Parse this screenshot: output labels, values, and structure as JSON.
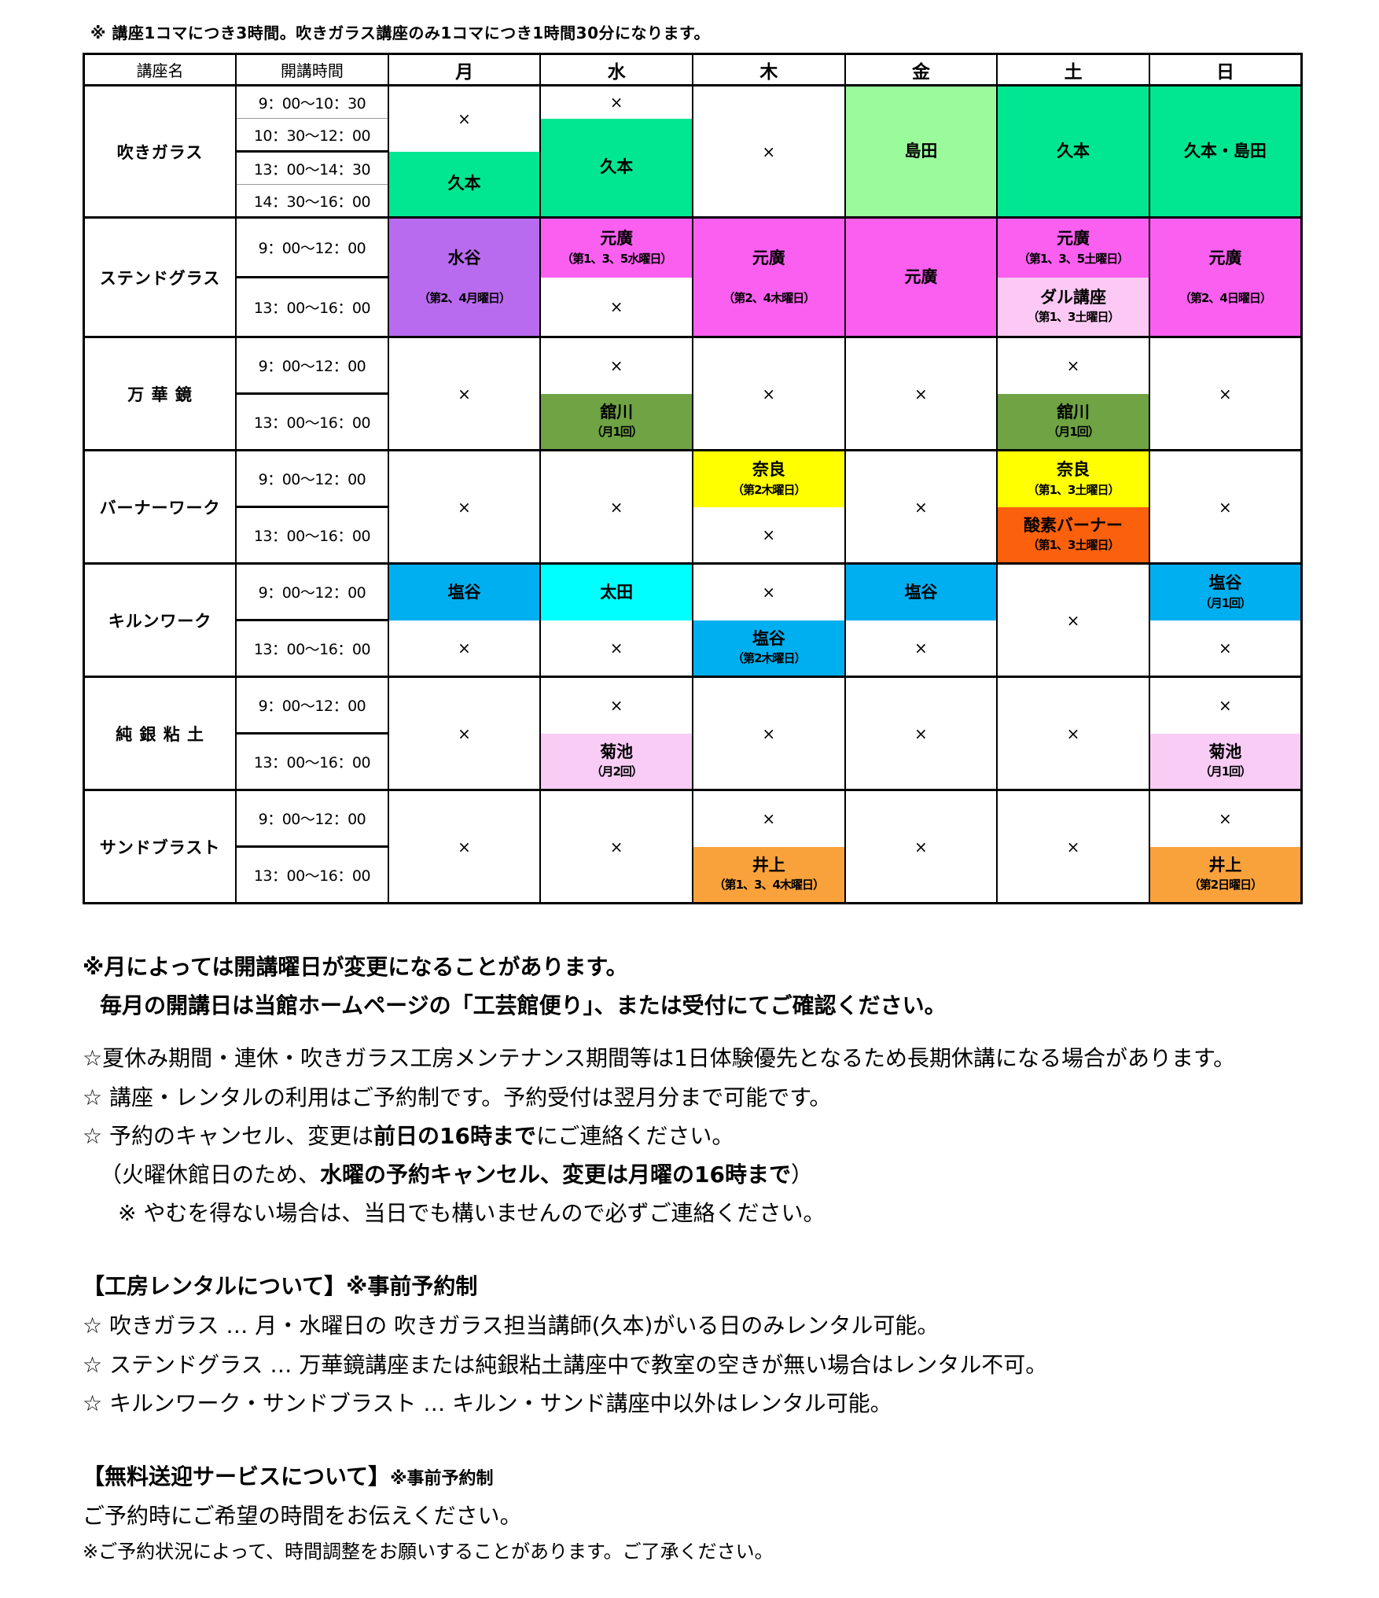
{
  "top_note": "※ 講座1コマにつき3時間。吹きガラス講座のみ1コマにつき1時間30分になります。",
  "table": {
    "headers": {
      "course": "講座名",
      "time": "開講時間",
      "days": [
        "月",
        "水",
        "木",
        "金",
        "土",
        "日"
      ]
    },
    "colors": {
      "white": "#FFFFFF",
      "green": "#00E691",
      "lightgreen": "#9AFB9A",
      "purple": "#B96BF0",
      "magenta": "#FA5FF0",
      "lightpink": "#FBC9F3",
      "pink": "#F8CCF5",
      "olive": "#6FA344",
      "yellow": "#FFFF00",
      "orangered": "#FB600C",
      "orange": "#F9A23C",
      "blue": "#00AFEF",
      "cyan": "#00FFFF"
    },
    "courses": [
      {
        "name": "吹きガラス",
        "times": [
          "9：00～10：30",
          "10：30～12：00",
          "13：00～14：30",
          "14：30～16：00"
        ],
        "time_dividers": [
          "thin",
          "thick",
          "thin"
        ],
        "days": [
          [
            {
              "text": "×",
              "rows": 2,
              "bg": "white"
            },
            {
              "text": "久本",
              "rows": 2,
              "bg": "green"
            }
          ],
          [
            {
              "text": "×",
              "rows": 1,
              "bg": "white"
            },
            {
              "text": "久本",
              "rows": 3,
              "bg": "green"
            }
          ],
          [
            {
              "text": "×",
              "rows": 4,
              "bg": "white"
            }
          ],
          [
            {
              "text": "島田",
              "rows": 4,
              "bg": "lightgreen"
            }
          ],
          [
            {
              "text": "久本",
              "rows": 4,
              "bg": "green"
            }
          ],
          [
            {
              "text": "久本・島田",
              "rows": 4,
              "bg": "green"
            }
          ]
        ]
      },
      {
        "name": "ステンドグラス",
        "times": [
          "9：00～12：00",
          "13：00～16：00"
        ],
        "time_dividers": [
          "thick"
        ],
        "days": [
          [
            {
              "text": "水谷\n（第2、4月曜日）",
              "rows": 2,
              "bg": "purple"
            }
          ],
          [
            {
              "text": "元廣\n（第1、3、5水曜日）",
              "rows": 1,
              "bg": "magenta"
            },
            {
              "text": "×",
              "rows": 1,
              "bg": "white"
            }
          ],
          [
            {
              "text": "元廣\n（第2、4木曜日）",
              "rows": 2,
              "bg": "magenta"
            }
          ],
          [
            {
              "text": "元廣",
              "rows": 2,
              "bg": "magenta"
            }
          ],
          [
            {
              "text": "元廣\n（第1、3、5土曜日）",
              "rows": 1,
              "bg": "magenta"
            },
            {
              "text": "ダル講座\n（第1、3土曜日）",
              "rows": 1,
              "bg": "lightpink"
            }
          ],
          [
            {
              "text": "元廣\n（第2、4日曜日）",
              "rows": 2,
              "bg": "magenta"
            }
          ]
        ]
      },
      {
        "name": "万 華 鏡",
        "times": [
          "9：00～12：00",
          "13：00～16：00"
        ],
        "time_dividers": [
          "thick"
        ],
        "days": [
          [
            {
              "text": "×",
              "rows": 2,
              "bg": "white"
            }
          ],
          [
            {
              "text": "×",
              "rows": 1,
              "bg": "white"
            },
            {
              "text": "舘川\n（月1回）",
              "rows": 1,
              "bg": "olive"
            }
          ],
          [
            {
              "text": "×",
              "rows": 2,
              "bg": "white"
            }
          ],
          [
            {
              "text": "×",
              "rows": 2,
              "bg": "white"
            }
          ],
          [
            {
              "text": "×",
              "rows": 1,
              "bg": "white"
            },
            {
              "text": "舘川\n（月1回）",
              "rows": 1,
              "bg": "olive"
            }
          ],
          [
            {
              "text": "×",
              "rows": 2,
              "bg": "white"
            }
          ]
        ]
      },
      {
        "name": "バーナーワーク",
        "times": [
          "9：00～12：00",
          "13：00～16：00"
        ],
        "time_dividers": [
          "thick"
        ],
        "days": [
          [
            {
              "text": "×",
              "rows": 2,
              "bg": "white"
            }
          ],
          [
            {
              "text": "×",
              "rows": 2,
              "bg": "white"
            }
          ],
          [
            {
              "text": "奈良\n（第2木曜日）",
              "rows": 1,
              "bg": "yellow"
            },
            {
              "text": "×",
              "rows": 1,
              "bg": "white"
            }
          ],
          [
            {
              "text": "×",
              "rows": 2,
              "bg": "white"
            }
          ],
          [
            {
              "text": "奈良\n（第1、3土曜日）",
              "rows": 1,
              "bg": "yellow"
            },
            {
              "text": "酸素バーナー\n（第1、3土曜日）",
              "rows": 1,
              "bg": "orangered"
            }
          ],
          [
            {
              "text": "×",
              "rows": 2,
              "bg": "white"
            }
          ]
        ]
      },
      {
        "name": "キルンワーク",
        "times": [
          "9：00～12：00",
          "13：00～16：00"
        ],
        "time_dividers": [
          "thick"
        ],
        "days": [
          [
            {
              "text": "塩谷",
              "rows": 1,
              "bg": "blue"
            },
            {
              "text": "×",
              "rows": 1,
              "bg": "white"
            }
          ],
          [
            {
              "text": "太田",
              "rows": 1,
              "bg": "cyan"
            },
            {
              "text": "×",
              "rows": 1,
              "bg": "white"
            }
          ],
          [
            {
              "text": "×",
              "rows": 1,
              "bg": "white"
            },
            {
              "text": "塩谷\n（第2木曜日）",
              "rows": 1,
              "bg": "blue"
            }
          ],
          [
            {
              "text": "塩谷",
              "rows": 1,
              "bg": "blue"
            },
            {
              "text": "×",
              "rows": 1,
              "bg": "white"
            }
          ],
          [
            {
              "text": "×",
              "rows": 2,
              "bg": "white"
            }
          ],
          [
            {
              "text": "塩谷\n（月1回）",
              "rows": 1,
              "bg": "blue"
            },
            {
              "text": "×",
              "rows": 1,
              "bg": "white"
            }
          ]
        ]
      },
      {
        "name": "純 銀 粘 土",
        "times": [
          "9：00～12：00",
          "13：00～16：00"
        ],
        "time_dividers": [
          "thick"
        ],
        "days": [
          [
            {
              "text": "×",
              "rows": 2,
              "bg": "white"
            }
          ],
          [
            {
              "text": "×",
              "rows": 1,
              "bg": "white"
            },
            {
              "text": "菊池\n（月2回）",
              "rows": 1,
              "bg": "pink"
            }
          ],
          [
            {
              "text": "×",
              "rows": 2,
              "bg": "white"
            }
          ],
          [
            {
              "text": "×",
              "rows": 2,
              "bg": "white"
            }
          ],
          [
            {
              "text": "×",
              "rows": 2,
              "bg": "white"
            }
          ],
          [
            {
              "text": "×",
              "rows": 1,
              "bg": "white"
            },
            {
              "text": "菊池\n（月1回）",
              "rows": 1,
              "bg": "pink"
            }
          ]
        ]
      },
      {
        "name": "サンドブラスト",
        "times": [
          "9：00～12：00",
          "13：00～16：00"
        ],
        "time_dividers": [
          "thick"
        ],
        "days": [
          [
            {
              "text": "×",
              "rows": 2,
              "bg": "white"
            }
          ],
          [
            {
              "text": "×",
              "rows": 2,
              "bg": "white"
            }
          ],
          [
            {
              "text": "×",
              "rows": 1,
              "bg": "white"
            },
            {
              "text": "井上\n（第1、3、4木曜日）",
              "rows": 1,
              "bg": "orange"
            }
          ],
          [
            {
              "text": "×",
              "rows": 2,
              "bg": "white"
            }
          ],
          [
            {
              "text": "×",
              "rows": 2,
              "bg": "white"
            }
          ],
          [
            {
              "text": "×",
              "rows": 1,
              "bg": "white"
            },
            {
              "text": "井上\n（第2日曜日）",
              "rows": 1,
              "bg": "orange"
            }
          ]
        ]
      }
    ]
  },
  "notes": {
    "change1": "※月によっては開講曜日が変更になることがあります。",
    "change2": "毎月の開講日は当館ホームページの「工芸館便り」、または受付にてご確認ください。",
    "star1": "☆夏休み期間・連休・吹きガラス工房メンテナンス期間等は1日体験優先となるため長期休講になる場合があります。",
    "star2": "☆ 講座・レンタルの利用はご予約制です。予約受付は翌月分まで可能です。",
    "cancel_pre": "☆ 予約のキャンセル、変更は",
    "cancel_bold": "前日の16時まで",
    "cancel_post": "にご連絡ください。",
    "paren_pre": "（火曜休館日のため、",
    "paren_bold": "水曜の予約キャンセル、変更は月曜の16時まで",
    "paren_post": "）",
    "unavoidable": "※ やむを得ない場合は、当日でも構いませんので必ずご連絡ください。"
  },
  "rental": {
    "heading": "【工房レンタルについて】※事前予約制",
    "items": [
      "☆ 吹きガラス … 月・水曜日の 吹きガラス担当講師(久本)がいる日のみレンタル可能。",
      "☆ ステンドグラス … 万華鏡講座または純銀粘土講座中で教室の空きが無い場合はレンタル不可。",
      "☆ キルンワーク・サンドブラスト … キルン・サンド講座中以外はレンタル可能。"
    ]
  },
  "shuttle": {
    "heading": "【無料送迎サービスについて】",
    "heading_note": "※事前予約制",
    "line1": "ご予約時にご希望の時間をお伝えください。",
    "line2": "※ご予約状況によって、時間調整をお願いすることがあります。ご了承ください。"
  }
}
